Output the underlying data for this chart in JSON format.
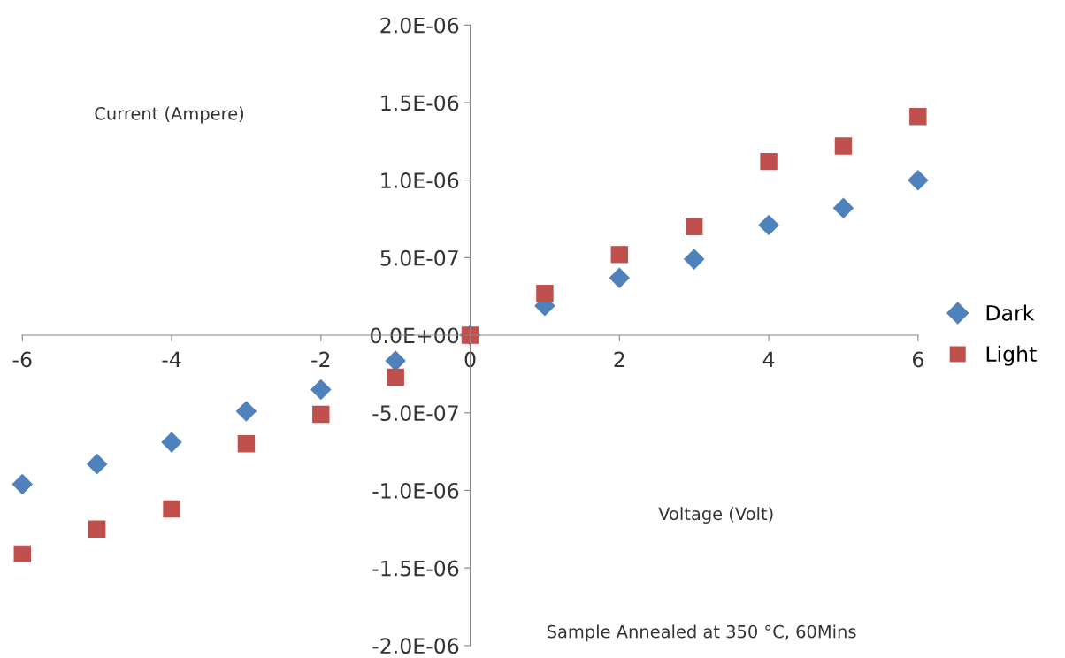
{
  "chart_data": {
    "type": "scatter",
    "xlabel": "Voltage (Volt)",
    "ylabel": "Current (Ampere)",
    "annotations": [
      "Sample Annealed at 350 °C, 60Mins"
    ],
    "x": [
      -6,
      -5,
      -4,
      -3,
      -2,
      -1,
      0,
      1,
      2,
      3,
      4,
      5,
      6
    ],
    "series": [
      {
        "name": "Dark",
        "color": "#4f81bd",
        "marker": "diamond",
        "values": [
          -9.6e-07,
          -8.3e-07,
          -6.9e-07,
          -4.9e-07,
          -3.5e-07,
          -1.65e-07,
          0,
          1.9e-07,
          3.7e-07,
          4.9e-07,
          7.1e-07,
          8.2e-07,
          1e-06
        ]
      },
      {
        "name": "Light",
        "color": "#c0504d",
        "marker": "square",
        "values": [
          -1.41e-06,
          -1.25e-06,
          -1.12e-06,
          -7e-07,
          -5.1e-07,
          -2.7e-07,
          0,
          2.7e-07,
          5.2e-07,
          7e-07,
          1.12e-06,
          1.22e-06,
          1.41e-06
        ]
      }
    ],
    "xlim": [
      -6,
      6
    ],
    "xticks": [
      -6,
      -4,
      -2,
      0,
      2,
      4,
      6
    ],
    "ylim": [
      -2e-06,
      2e-06
    ],
    "yticks": [
      {
        "value": -2e-06,
        "label": "-2.0E-06"
      },
      {
        "value": -1.5e-06,
        "label": "-1.5E-06"
      },
      {
        "value": -1e-06,
        "label": "-1.0E-06"
      },
      {
        "value": -5e-07,
        "label": "-5.0E-07"
      },
      {
        "value": 0,
        "label": "0.0E+00"
      },
      {
        "value": 5e-07,
        "label": "5.0E-07"
      },
      {
        "value": 1e-06,
        "label": "1.0E-06"
      },
      {
        "value": 1.5e-06,
        "label": "1.5E-06"
      },
      {
        "value": 2e-06,
        "label": "2.0E-06"
      }
    ],
    "legend": "right",
    "grid": false
  }
}
